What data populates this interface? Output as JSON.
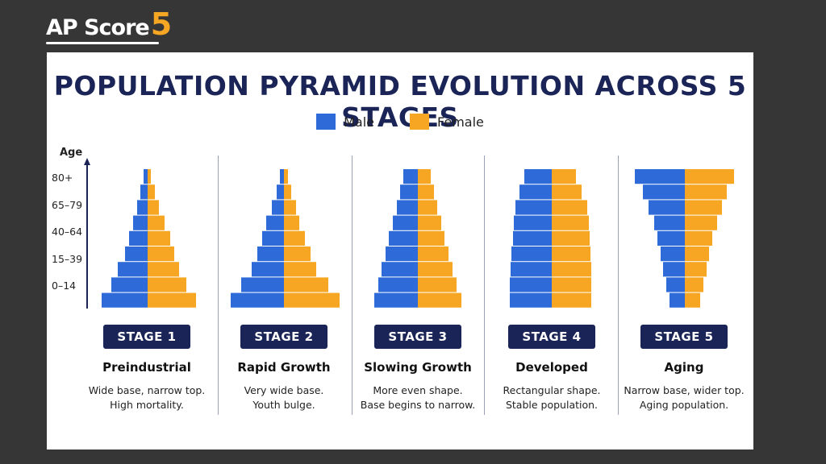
{
  "brand": {
    "text": "AP Score",
    "number": "5"
  },
  "colors": {
    "male": "#2f6ad9",
    "female": "#f6a623",
    "navy": "#1b2456"
  },
  "chart_data": {
    "type": "bar",
    "title": "POPULATION PYRAMID EVOLUTION ACROSS 5 STAGES",
    "legend": [
      {
        "name": "Male",
        "color": "#2f6ad9"
      },
      {
        "name": "Female",
        "color": "#f6a623"
      }
    ],
    "ylabel": "Age",
    "age_ticks": [
      "80+",
      "65–79",
      "40–64",
      "15–39",
      "0–14"
    ],
    "stages": [
      {
        "badge": "STAGE 1",
        "name": "Preindustrial",
        "desc": [
          "Wide base, narrow top.",
          "High mortality."
        ],
        "male": [
          5,
          9,
          13,
          18,
          23,
          28,
          37,
          45,
          57
        ],
        "female": [
          4,
          9,
          14,
          21,
          28,
          33,
          39,
          48,
          60
        ]
      },
      {
        "badge": "STAGE 2",
        "name": "Rapid Growth",
        "desc": [
          "Very wide base.",
          "Youth bulge."
        ],
        "male": [
          5,
          9,
          15,
          22,
          27,
          33,
          40,
          53,
          66
        ],
        "female": [
          5,
          9,
          15,
          19,
          26,
          33,
          40,
          55,
          69
        ]
      },
      {
        "badge": "STAGE 3",
        "name": "Slowing Growth",
        "desc": [
          "More even shape.",
          "Base begins to narrow."
        ],
        "male": [
          18,
          22,
          26,
          31,
          36,
          40,
          45,
          49,
          54
        ],
        "female": [
          16,
          20,
          24,
          29,
          33,
          38,
          43,
          48,
          54
        ]
      },
      {
        "badge": "STAGE 4",
        "name": "Developed",
        "desc": [
          "Rectangular shape.",
          "Stable population."
        ],
        "male": [
          34,
          40,
          45,
          47,
          48,
          50,
          51,
          52,
          52
        ],
        "female": [
          30,
          37,
          44,
          46,
          47,
          48,
          49,
          49,
          49
        ]
      },
      {
        "badge": "STAGE 5",
        "name": "Aging",
        "desc": [
          "Narrow base, wider top.",
          "Aging population."
        ],
        "male": [
          62,
          52,
          45,
          38,
          34,
          30,
          27,
          23,
          19
        ],
        "female": [
          61,
          52,
          46,
          40,
          34,
          30,
          27,
          23,
          19
        ]
      }
    ]
  }
}
